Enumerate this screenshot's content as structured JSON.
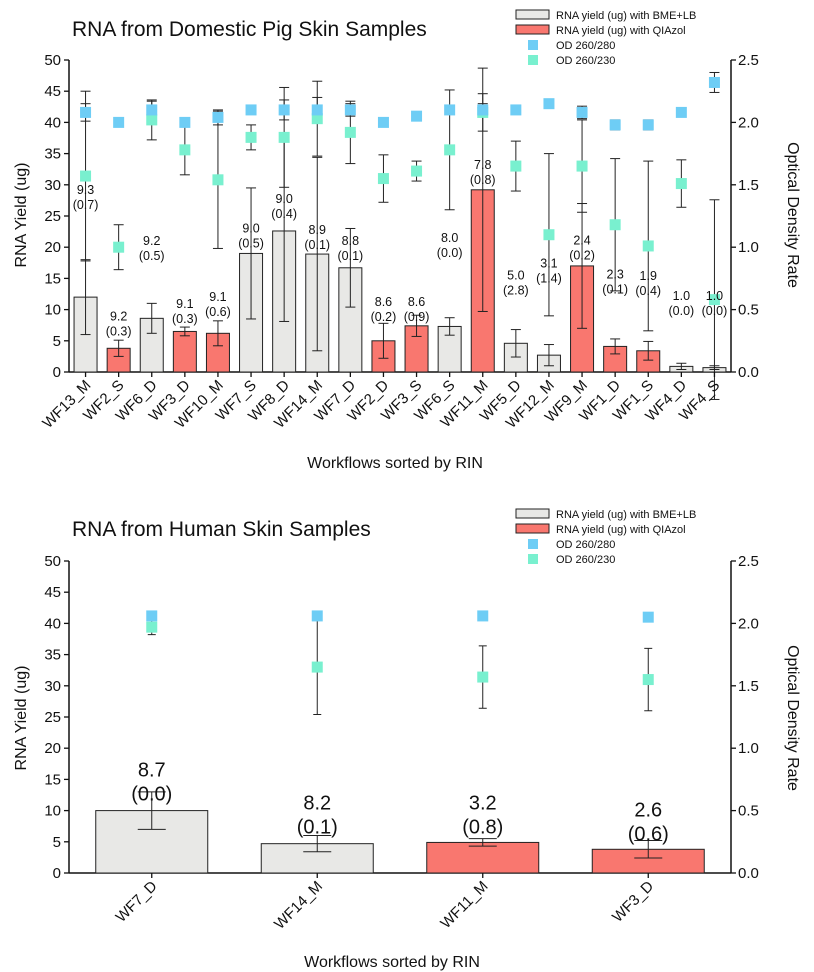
{
  "chart_data": [
    {
      "type": "bar",
      "title": "RNA from Domestic Pig Skin Samples",
      "xlabel": "Workflows sorted by RIN",
      "ylabel": "RNA Yield (ug)",
      "y2label": "Optical Density Rate",
      "ylim": [
        0,
        50
      ],
      "y2lim": [
        0,
        2.5
      ],
      "yticks": [
        "0",
        "5",
        "10",
        "15",
        "20",
        "25",
        "30",
        "35",
        "40",
        "45",
        "50"
      ],
      "y2ticks": [
        "0.0",
        "0.5",
        "1.0",
        "1.5",
        "2.0",
        "2.5"
      ],
      "legend_position": "top-right",
      "legend": [
        {
          "label": "RNA yield (ug) with BME+LB",
          "color": "#e8e8e6",
          "kind": "bar"
        },
        {
          "label": "RNA yield (ug) with QIAzol",
          "color": "#f9776f",
          "kind": "bar"
        },
        {
          "label": "OD 260/280",
          "color": "#6ecdf5",
          "kind": "square"
        },
        {
          "label": "OD 260/230",
          "color": "#79f0cf",
          "kind": "square"
        }
      ],
      "colors": {
        "bme": "#e8e8e6",
        "qiazol": "#f9776f",
        "od280": "#6ecdf5",
        "od230": "#79f0cf"
      },
      "categories": [
        "WF13_M",
        "WF2_S",
        "WF6_D",
        "WF3_D",
        "WF10_M",
        "WF7_S",
        "WF8_D",
        "WF14_M",
        "WF7_D",
        "WF2_D",
        "WF3_S",
        "WF6_S",
        "WF11_M",
        "WF5_D",
        "WF12_M",
        "WF9_M",
        "WF1_D",
        "WF1_S",
        "WF4_D",
        "WF4_S"
      ],
      "method": [
        "bme",
        "qiazol",
        "bme",
        "qiazol",
        "qiazol",
        "bme",
        "bme",
        "bme",
        "bme",
        "qiazol",
        "qiazol",
        "bme",
        "qiazol",
        "bme",
        "bme",
        "qiazol",
        "qiazol",
        "qiazol",
        "bme",
        "bme"
      ],
      "yield": [
        12.0,
        3.8,
        8.6,
        6.5,
        6.2,
        19.0,
        22.6,
        18.9,
        16.7,
        5.0,
        7.4,
        7.3,
        29.2,
        4.6,
        2.7,
        17.0,
        4.1,
        3.4,
        0.9,
        0.7
      ],
      "yield_err": [
        6.0,
        1.3,
        2.4,
        0.7,
        2.0,
        10.5,
        14.5,
        15.5,
        6.3,
        2.8,
        1.7,
        1.4,
        19.5,
        2.2,
        1.7,
        10.0,
        1.2,
        1.5,
        0.5,
        0.3
      ],
      "od280": [
        2.08,
        2.0,
        2.1,
        2.0,
        2.04,
        2.1,
        2.1,
        2.1,
        2.1,
        2.0,
        2.05,
        2.1,
        2.1,
        2.1,
        2.15,
        2.08,
        1.98,
        1.98,
        2.08,
        2.32
      ],
      "od280_err": [
        0.07,
        0.0,
        0.07,
        0.03,
        0.06,
        0.0,
        0.08,
        0.1,
        0.05,
        0.0,
        0.03,
        0.0,
        0.05,
        0.0,
        0.03,
        0.05,
        0.04,
        0.04,
        0.03,
        0.08
      ],
      "od230": [
        1.57,
        1.0,
        2.02,
        1.78,
        1.54,
        1.88,
        1.88,
        2.03,
        1.92,
        1.55,
        1.61,
        1.78,
        2.08,
        1.65,
        1.1,
        1.65,
        1.18,
        1.01,
        1.51,
        0.58
      ],
      "od230_err": [
        0.68,
        0.18,
        0.16,
        0.2,
        0.55,
        0.1,
        0.4,
        0.3,
        0.25,
        0.19,
        0.08,
        0.48,
        0.15,
        0.2,
        0.65,
        0.37,
        0.53,
        0.68,
        0.19,
        0.8
      ],
      "data_labels": [
        "9.3\n(0.7)",
        "9.2\n(0.3)",
        "9.2\n(0.5)",
        "9.1\n(0.3)",
        "9.1\n(0.6)",
        "9.0\n(0.5)",
        "9.0\n(0.4)",
        "8.9\n(0.1)",
        "8.8\n(0.1)",
        "8.6\n(0.2)",
        "8.6\n(0.9)",
        "8.0\n(0.0)",
        "7.8\n(0.8)",
        "5.0\n(2.8)",
        "3.1\n(1.4)",
        "2.4\n(0.2)",
        "2.3\n(0.1)",
        "1.9\n(0.4)",
        "1.0\n(0.0)",
        "1.0\n(0.0)"
      ],
      "label_y": [
        25.5,
        5.2,
        17.3,
        7.2,
        8.3,
        19.3,
        24.0,
        19.1,
        17.3,
        7.5,
        7.5,
        17.8,
        29.5,
        11.8,
        13.7,
        17.4,
        11.9,
        11.7,
        8.5,
        8.5
      ]
    },
    {
      "type": "bar",
      "title": "RNA from Human Skin Samples",
      "xlabel": "Workflows sorted by RIN",
      "ylabel": "RNA Yield (ug)",
      "y2label": "Optical Density Rate",
      "ylim": [
        0,
        50
      ],
      "y2lim": [
        0,
        2.5
      ],
      "yticks": [
        "0",
        "5",
        "10",
        "15",
        "20",
        "25",
        "30",
        "35",
        "40",
        "45",
        "50"
      ],
      "y2ticks": [
        "0.0",
        "0.5",
        "1.0",
        "1.5",
        "2.0",
        "2.5"
      ],
      "legend_position": "top-right",
      "legend": [
        {
          "label": "RNA yield (ug) with BME+LB",
          "color": "#e8e8e6",
          "kind": "bar"
        },
        {
          "label": "RNA yield (ug) with QIAzol",
          "color": "#f9776f",
          "kind": "bar"
        },
        {
          "label": "OD 260/280",
          "color": "#6ecdf5",
          "kind": "square"
        },
        {
          "label": "OD 260/230",
          "color": "#79f0cf",
          "kind": "square"
        }
      ],
      "colors": {
        "bme": "#e8e8e6",
        "qiazol": "#f9776f",
        "od280": "#6ecdf5",
        "od230": "#79f0cf"
      },
      "categories": [
        "WF7_D",
        "WF14_M",
        "WF11_M",
        "WF3_D"
      ],
      "method": [
        "bme",
        "bme",
        "qiazol",
        "qiazol"
      ],
      "yield": [
        10.0,
        4.7,
        4.9,
        3.8
      ],
      "yield_err": [
        3.0,
        1.3,
        0.6,
        1.4
      ],
      "od280": [
        2.06,
        2.06,
        2.06,
        2.05
      ],
      "od280_err": [
        0.03,
        0.03,
        0.01,
        0.01
      ],
      "od230": [
        1.97,
        1.65,
        1.57,
        1.55
      ],
      "od230_err": [
        0.06,
        0.38,
        0.25,
        0.25
      ],
      "data_labels": [
        "8.7\n(0.0)",
        "8.2\n(0.1)",
        "3.2\n(0.8)",
        "2.6\n(0.6)"
      ],
      "label_y": [
        11.0,
        5.7,
        5.7,
        4.6
      ]
    }
  ]
}
